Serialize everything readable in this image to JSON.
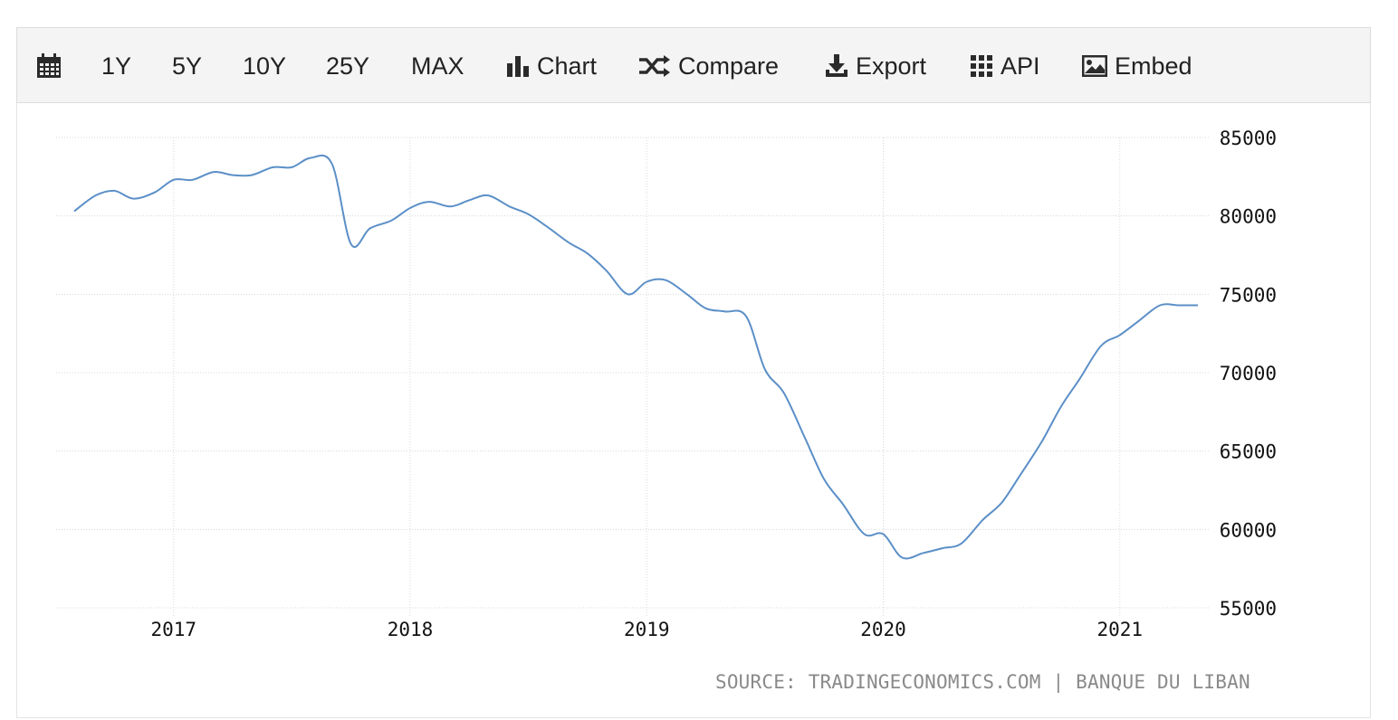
{
  "toolbar": {
    "calendar_icon": "calendar-icon",
    "range_buttons": [
      "1Y",
      "5Y",
      "10Y",
      "25Y",
      "MAX"
    ],
    "chart_label": "Chart",
    "chart_icon": "bar-chart-icon",
    "compare_label": "Compare",
    "compare_icon": "shuffle-icon",
    "export_label": "Export",
    "export_icon": "download-icon",
    "api_label": "API",
    "api_icon": "grid-icon",
    "embed_label": "Embed",
    "embed_icon": "image-icon"
  },
  "colors": {
    "line": "#5b8fc7",
    "grid": "#d8d8d8",
    "toolbar_bg": "#f4f4f4",
    "source_text": "#8a8a8a"
  },
  "source": "SOURCE: TRADINGECONOMICS.COM | BANQUE DU LIBAN",
  "chart_data": {
    "type": "line",
    "title": "",
    "xlabel": "",
    "ylabel": "",
    "ylim": [
      55000,
      85000
    ],
    "yticks": [
      55000,
      60000,
      65000,
      70000,
      75000,
      80000,
      85000
    ],
    "xticks": [
      2017,
      2018,
      2019,
      2020,
      2021
    ],
    "xlim": [
      2016.58,
      2021.5
    ],
    "grid": true,
    "legend": "none",
    "x": [
      2016.58,
      2016.67,
      2016.75,
      2016.83,
      2016.92,
      2017.0,
      2017.08,
      2017.17,
      2017.25,
      2017.33,
      2017.42,
      2017.5,
      2017.58,
      2017.67,
      2017.75,
      2017.83,
      2017.92,
      2018.0,
      2018.08,
      2018.17,
      2018.25,
      2018.33,
      2018.42,
      2018.5,
      2018.58,
      2018.67,
      2018.75,
      2018.83,
      2018.92,
      2019.0,
      2019.08,
      2019.17,
      2019.25,
      2019.33,
      2019.42,
      2019.5,
      2019.58,
      2019.67,
      2019.75,
      2019.83,
      2019.92,
      2020.0,
      2020.08,
      2020.17,
      2020.25,
      2020.33,
      2020.42,
      2020.5,
      2020.58,
      2020.67,
      2020.75,
      2020.83,
      2020.92,
      2021.0,
      2021.08,
      2021.17,
      2021.25,
      2021.33
    ],
    "values": [
      80300,
      81300,
      81600,
      81100,
      81500,
      82300,
      82300,
      82800,
      82600,
      82600,
      83100,
      83100,
      83700,
      83300,
      78200,
      79200,
      79700,
      80500,
      80900,
      80600,
      81000,
      81300,
      80600,
      80100,
      79300,
      78300,
      77600,
      76500,
      75000,
      75800,
      75900,
      75000,
      74100,
      73900,
      73600,
      70200,
      68700,
      65800,
      63200,
      61600,
      59700,
      59700,
      58200,
      58500,
      58800,
      59100,
      60600,
      61700,
      63500,
      65600,
      67800,
      69600,
      71700,
      72400,
      73300,
      74300,
      74300,
      74300
    ]
  }
}
